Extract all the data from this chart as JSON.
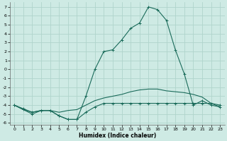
{
  "xlabel": "Humidex (Indice chaleur)",
  "xlim": [
    -0.5,
    23.5
  ],
  "ylim": [
    -6.2,
    7.5
  ],
  "background_color": "#ceeae4",
  "grid_color": "#b0d4cc",
  "line_color": "#1a6b5a",
  "curve1_x": [
    0,
    1,
    2,
    3,
    4,
    5,
    6,
    7,
    8,
    9,
    10,
    11,
    12,
    13,
    14,
    15,
    16,
    17,
    18,
    19,
    20,
    21,
    22,
    23
  ],
  "curve1_y": [
    -4.0,
    -4.5,
    -5.0,
    -4.6,
    -4.6,
    -5.2,
    -5.6,
    -5.6,
    -3.0,
    0.0,
    2.0,
    2.2,
    3.3,
    4.6,
    5.2,
    7.0,
    6.7,
    5.5,
    2.2,
    -0.5,
    -4.0,
    -3.5,
    -4.0,
    -4.2
  ],
  "curve2_x": [
    0,
    1,
    2,
    3,
    4,
    5,
    6,
    7,
    8,
    9,
    10,
    11,
    12,
    13,
    14,
    15,
    16,
    17,
    18,
    19,
    20,
    21,
    22,
    23
  ],
  "curve2_y": [
    -4.0,
    -4.5,
    -4.8,
    -4.6,
    -4.6,
    -4.8,
    -4.6,
    -4.5,
    -4.0,
    -3.5,
    -3.2,
    -3.0,
    -2.8,
    -2.5,
    -2.3,
    -2.2,
    -2.2,
    -2.4,
    -2.5,
    -2.6,
    -2.8,
    -3.1,
    -3.8,
    -4.2
  ],
  "curve3_x": [
    0,
    1,
    2,
    3,
    4,
    5,
    6,
    7,
    8,
    9,
    10,
    11,
    12,
    13,
    14,
    15,
    16,
    17,
    18,
    19,
    20,
    21,
    22,
    23
  ],
  "curve3_y": [
    -4.0,
    -4.4,
    -4.8,
    -4.6,
    -4.6,
    -5.2,
    -5.6,
    -5.6,
    -4.8,
    -4.2,
    -3.8,
    -3.8,
    -3.8,
    -3.8,
    -3.8,
    -3.8,
    -3.8,
    -3.8,
    -3.8,
    -3.8,
    -3.8,
    -3.8,
    -3.8,
    -4.0
  ],
  "xticks": [
    0,
    1,
    2,
    3,
    4,
    5,
    6,
    7,
    8,
    9,
    10,
    11,
    12,
    13,
    14,
    15,
    16,
    17,
    18,
    19,
    20,
    21,
    22,
    23
  ],
  "yticks": [
    -6,
    -5,
    -4,
    -3,
    -2,
    -1,
    0,
    1,
    2,
    3,
    4,
    5,
    6,
    7
  ]
}
